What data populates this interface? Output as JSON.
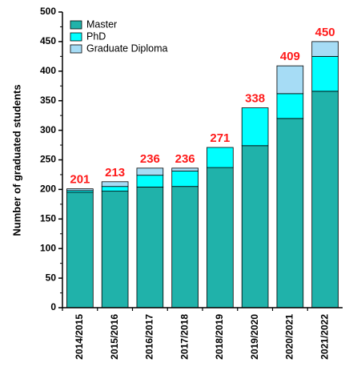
{
  "chart_data": {
    "type": "stacked_bar",
    "ylabel": "Number of graduated students",
    "categories": [
      "2014/2015",
      "2015/2016",
      "2016/2017",
      "2017/2018",
      "2018/2019",
      "2019/2020",
      "2020/2021",
      "2021/2022"
    ],
    "series": [
      {
        "name": "Master",
        "color": "#20b2aa",
        "values": [
          195,
          197,
          204,
          205,
          237,
          274,
          320,
          366
        ]
      },
      {
        "name": "PhD",
        "color": "#00ffff",
        "values": [
          3,
          8,
          20,
          26,
          34,
          64,
          42,
          59
        ]
      },
      {
        "name": "Graduate Diploma",
        "color": "#a6dcf5",
        "values": [
          3,
          8,
          12,
          5,
          0,
          0,
          47,
          25
        ]
      }
    ],
    "totals": [
      201,
      213,
      236,
      236,
      271,
      338,
      409,
      450
    ],
    "ylim": [
      0,
      500
    ],
    "yticks": [
      0,
      50,
      100,
      150,
      200,
      250,
      300,
      350,
      400,
      450,
      500
    ],
    "legend": "upper left"
  }
}
